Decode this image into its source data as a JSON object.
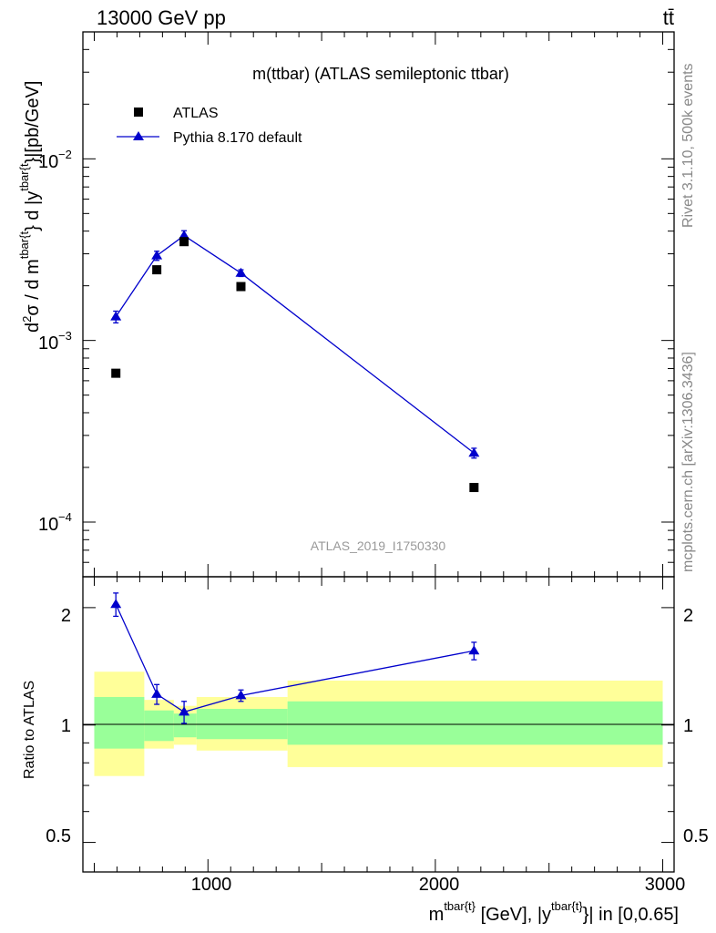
{
  "header": {
    "left_label": "13000 GeV pp",
    "right_label": "tt̄"
  },
  "side": {
    "rivet": "Rivet 3.1.10,  500k events",
    "mcplots": "mcplots.cern.ch [arXiv:1306.3436]"
  },
  "colors": {
    "mc": "#0000cc",
    "data": "#000000",
    "band_outer": "#ffff99",
    "band_inner": "#99ff99",
    "watermark": "#999999",
    "side_text": "#888888"
  },
  "chart_data": [
    {
      "name": "main-panel",
      "type": "scatter",
      "title": "m(ttbar) (ATLAS semileptonic ttbar)",
      "watermark": "ATLAS_2019_I1750330",
      "ylabel": "d²σ / d m^{tbar{t}} d |y^{tbar{t}}|[pb/GeV]",
      "ylabel_parts": {
        "d1": "d",
        "exp2": "2",
        "sigma": "σ / d m",
        "sup_tbar1": "tbar{t",
        "mid": "} d |y",
        "sup_tbar2": "tbar{t",
        "tail": "}|[pb/GeV]"
      },
      "yscale": "log",
      "ylim": [
        5e-05,
        0.05
      ],
      "xlim": [
        450,
        3050
      ],
      "ytick_labels": [
        {
          "base": "10",
          "exp": "−2",
          "value": 0.01
        },
        {
          "base": "10",
          "exp": "−3",
          "value": 0.001
        },
        {
          "base": "10",
          "exp": "−4",
          "value": 0.0001
        }
      ],
      "legend": [
        {
          "label": "ATLAS",
          "marker": "square"
        },
        {
          "label": "Pythia 8.170 default",
          "marker": "triangle"
        }
      ],
      "series": [
        {
          "name": "ATLAS",
          "x": [
            595,
            775,
            895,
            1145,
            2170
          ],
          "y": [
            0.00066,
            0.00245,
            0.0035,
            0.00198,
            0.000155
          ]
        },
        {
          "name": "Pythia 8.170 default",
          "x": [
            595,
            775,
            895,
            1145,
            2170
          ],
          "y": [
            0.00135,
            0.00293,
            0.00378,
            0.00235,
            0.00024
          ],
          "err": [
            0.0001,
            0.00017,
            0.00024,
            0.0001,
            1.5e-05
          ]
        }
      ]
    },
    {
      "name": "ratio-panel",
      "type": "line",
      "ylabel": "Ratio to ATLAS",
      "yscale": "log",
      "ylim": [
        0.42,
        2.4
      ],
      "xlim": [
        450,
        3050
      ],
      "ytick_labels": [
        {
          "label": "2",
          "value": 2
        },
        {
          "label": "1",
          "value": 1
        },
        {
          "label": "0.5",
          "value": 0.5
        }
      ],
      "xtick_labels": [
        {
          "label": "1000",
          "value": 1000
        },
        {
          "label": "2000",
          "value": 2000
        },
        {
          "label": "3000",
          "value": 3000
        }
      ],
      "xlabel_parts": {
        "m": "m",
        "sup_tbar1": "tbar{t}",
        "mid": " [GeV], |y",
        "sup_tbar2": "tbar{t}",
        "tail": "}| in [0,0.65]"
      },
      "bands": [
        {
          "x0": 500,
          "x1": 720,
          "inner": [
            0.87,
            1.18
          ],
          "outer": [
            0.74,
            1.37
          ]
        },
        {
          "x0": 720,
          "x1": 850,
          "inner": [
            0.91,
            1.09
          ],
          "outer": [
            0.87,
            1.16
          ]
        },
        {
          "x0": 850,
          "x1": 950,
          "inner": [
            0.93,
            1.07
          ],
          "outer": [
            0.89,
            1.12
          ]
        },
        {
          "x0": 950,
          "x1": 1350,
          "inner": [
            0.92,
            1.1
          ],
          "outer": [
            0.86,
            1.18
          ]
        },
        {
          "x0": 1350,
          "x1": 3000,
          "inner": [
            0.89,
            1.15
          ],
          "outer": [
            0.78,
            1.3
          ]
        }
      ],
      "series": [
        {
          "name": "Pythia 8.170 default",
          "x": [
            595,
            775,
            895,
            1145,
            2170
          ],
          "y": [
            2.04,
            1.2,
            1.08,
            1.19,
            1.55
          ],
          "err": [
            0.14,
            0.07,
            0.07,
            0.04,
            0.08
          ]
        }
      ]
    }
  ]
}
